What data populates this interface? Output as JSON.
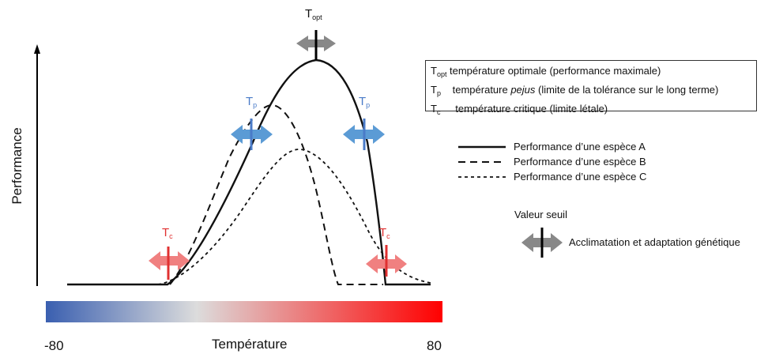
{
  "axes": {
    "y_label": "Performance",
    "x_label": "Température",
    "x_min": "-80",
    "x_max": "80",
    "gradient_colors": [
      "#3a5fb0",
      "#dcdcdc",
      "#ff0000"
    ]
  },
  "markers": {
    "t_opt": {
      "base": "T",
      "sub": "opt"
    },
    "t_p": {
      "base": "T",
      "sub": "p"
    },
    "t_c": {
      "base": "T",
      "sub": "c"
    }
  },
  "definitions": {
    "t_opt": {
      "base": "T",
      "sub": "opt",
      "text": "température optimale (performance maximale)"
    },
    "t_p": {
      "base": "T",
      "sub": "p",
      "text_before": "température ",
      "text_italic": "pejus",
      "text_after": " (limite de la tolérance sur le long terme)"
    },
    "t_c": {
      "base": "T",
      "sub": "c",
      "text": "température critique (limite létale)"
    }
  },
  "legend": {
    "species_a": "Performance d’une espèce A",
    "species_b": "Performance d’une espèce B",
    "species_c": "Performance d’une espèce C",
    "threshold": "Valeur seuil",
    "acclimation": "Acclimatation et adaptation génétique"
  },
  "colors": {
    "gray_arrow": "#888888",
    "blue_arrow": "#5b9bd5",
    "blue_text": "#4a7bc8",
    "red_arrow": "#f08080",
    "red_line": "#e03030",
    "curve": "#111111"
  }
}
